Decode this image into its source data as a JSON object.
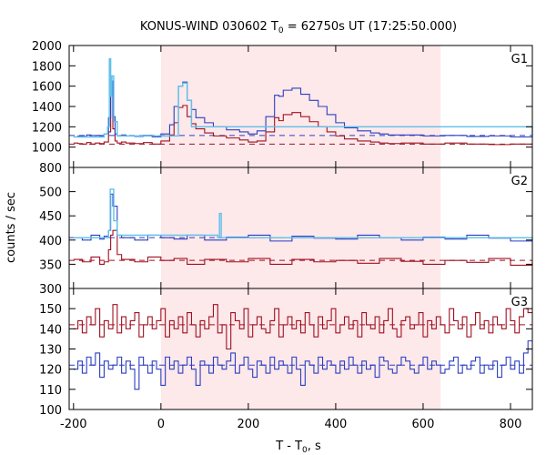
{
  "chart_data": {
    "type": "line",
    "title": {
      "prefix": "KONUS-WIND 030602 T",
      "sub": "0",
      "suffix": " = 62750s UT (17:25:50.000)"
    },
    "xlabel": {
      "prefix": "T - T",
      "sub": "0",
      "suffix": ", s"
    },
    "ylabel": "counts / sec",
    "xlim": [
      -210,
      850
    ],
    "x_ticks": [
      -200,
      0,
      200,
      400,
      600,
      800
    ],
    "shaded_interval": [
      0,
      640
    ],
    "shade_color": "#fde8ea",
    "colors": {
      "red": "#a01020",
      "blue": "#2a3fc0",
      "cyan": "#5fc0ea"
    },
    "panels": [
      {
        "name": "G1",
        "ylim": [
          800,
          2000
        ],
        "y_ticks": [
          800,
          1000,
          1200,
          1400,
          1600,
          1800,
          2000
        ],
        "red_background": 1030,
        "blue_background": 1115,
        "series": [
          {
            "name": "",
            "color": "red",
            "x": [
              -200,
              -190,
              -180,
              -170,
              -160,
              -150,
              -140,
              -130,
              -120,
              -115,
              -110,
              -105,
              -100,
              -90,
              -80,
              -60,
              -40,
              -20,
              0,
              20,
              30,
              40,
              50,
              60,
              70,
              80,
              100,
              120,
              150,
              180,
              200,
              220,
              240,
              260,
              270,
              280,
              300,
              320,
              340,
              360,
              380,
              400,
              420,
              450,
              480,
              500,
              520,
              550,
              600,
              650,
              700,
              750,
              800,
              850
            ],
            "y": [
              1040,
              1035,
              1030,
              1045,
              1030,
              1040,
              1035,
              1050,
              1150,
              1600,
              1180,
              1060,
              1040,
              1050,
              1040,
              1035,
              1045,
              1030,
              1060,
              1120,
              1240,
              1390,
              1410,
              1300,
              1230,
              1180,
              1140,
              1110,
              1090,
              1070,
              1050,
              1060,
              1150,
              1290,
              1260,
              1320,
              1340,
              1300,
              1250,
              1200,
              1150,
              1110,
              1080,
              1060,
              1050,
              1040,
              1035,
              1040,
              1030,
              1040,
              1030,
              1025,
              1030,
              1030
            ]
          },
          {
            "name": "",
            "color": "blue",
            "x": [
              -200,
              -190,
              -180,
              -170,
              -160,
              -150,
              -140,
              -130,
              -120,
              -115,
              -110,
              -105,
              -100,
              -90,
              -80,
              -60,
              -40,
              -20,
              0,
              20,
              30,
              40,
              50,
              60,
              70,
              80,
              100,
              120,
              150,
              180,
              200,
              220,
              240,
              260,
              270,
              280,
              300,
              320,
              340,
              360,
              380,
              400,
              420,
              450,
              480,
              500,
              520,
              550,
              600,
              650,
              700,
              750,
              800,
              850
            ],
            "y": [
              1100,
              1110,
              1105,
              1120,
              1100,
              1115,
              1110,
              1130,
              1290,
              1650,
              1300,
              1130,
              1110,
              1120,
              1110,
              1105,
              1115,
              1100,
              1130,
              1220,
              1400,
              1600,
              1640,
              1460,
              1370,
              1290,
              1240,
              1200,
              1170,
              1150,
              1130,
              1160,
              1300,
              1510,
              1500,
              1560,
              1580,
              1520,
              1460,
              1400,
              1320,
              1240,
              1190,
              1160,
              1140,
              1130,
              1120,
              1120,
              1110,
              1115,
              1105,
              1110,
              1100,
              1100
            ]
          },
          {
            "name": "",
            "color": "cyan",
            "x": [
              -200,
              -130,
              -122,
              -118,
              -115,
              -112,
              -108,
              -100,
              40,
              50,
              60,
              70,
              850
            ],
            "y": [
              1100,
              1130,
              1200,
              1870,
              1500,
              1700,
              1250,
              1110,
              1600,
              1630,
              1460,
              1200,
              1100
            ]
          }
        ]
      },
      {
        "name": "G2",
        "ylim": [
          300,
          550
        ],
        "y_ticks": [
          300,
          350,
          400,
          450,
          500
        ],
        "red_background": 358,
        "blue_background": 405,
        "series": [
          {
            "name": "",
            "color": "red",
            "x": [
              -200,
              -180,
              -160,
              -140,
              -130,
              -120,
              -115,
              -110,
              -100,
              -90,
              -60,
              -30,
              0,
              30,
              60,
              100,
              150,
              200,
              250,
              300,
              350,
              400,
              450,
              500,
              550,
              600,
              650,
              700,
              750,
              800,
              850
            ],
            "y": [
              360,
              355,
              365,
              350,
              355,
              380,
              410,
              420,
              370,
              360,
              355,
              365,
              358,
              362,
              350,
              360,
              355,
              362,
              350,
              360,
              355,
              358,
              352,
              362,
              356,
              350,
              358,
              354,
              362,
              348,
              356
            ]
          },
          {
            "name": "",
            "color": "blue",
            "x": [
              -200,
              -180,
              -160,
              -140,
              -130,
              -120,
              -115,
              -110,
              -100,
              -90,
              -60,
              -30,
              0,
              30,
              60,
              100,
              150,
              200,
              250,
              300,
              350,
              400,
              450,
              500,
              550,
              600,
              650,
              700,
              750,
              800,
              850
            ],
            "y": [
              405,
              400,
              410,
              402,
              408,
              420,
              495,
              470,
              410,
              405,
              400,
              410,
              405,
              402,
              410,
              400,
              406,
              410,
              398,
              408,
              404,
              402,
              410,
              405,
              400,
              406,
              402,
              410,
              404,
              398,
              406
            ]
          },
          {
            "name": "",
            "color": "cyan",
            "x": [
              -200,
              -120,
              -116,
              -112,
              -108,
              -100,
              130,
              134,
              138,
              850
            ],
            "y": [
              405,
              420,
              505,
              505,
              440,
              410,
              405,
              455,
              405,
              405
            ]
          }
        ]
      },
      {
        "name": "G3",
        "ylim": [
          100,
          160
        ],
        "y_ticks": [
          100,
          110,
          120,
          130,
          140,
          150
        ],
        "red_background": 142,
        "blue_background": 122,
        "series": [
          {
            "name": "",
            "color": "red",
            "x": [
              -200,
              -190,
              -180,
              -170,
              -160,
              -150,
              -140,
              -130,
              -120,
              -110,
              -100,
              -90,
              -80,
              -70,
              -60,
              -50,
              -40,
              -30,
              -20,
              -10,
              0,
              10,
              20,
              30,
              40,
              50,
              60,
              70,
              80,
              90,
              100,
              110,
              120,
              130,
              140,
              150,
              160,
              170,
              180,
              190,
              200,
              210,
              220,
              230,
              240,
              250,
              260,
              270,
              280,
              290,
              300,
              310,
              320,
              330,
              340,
              350,
              360,
              370,
              380,
              390,
              400,
              410,
              420,
              430,
              440,
              450,
              460,
              470,
              480,
              490,
              500,
              510,
              520,
              530,
              540,
              550,
              560,
              570,
              580,
              590,
              600,
              610,
              620,
              630,
              640,
              650,
              660,
              670,
              680,
              690,
              700,
              710,
              720,
              730,
              740,
              750,
              760,
              770,
              780,
              790,
              800,
              810,
              820,
              830,
              840
            ],
            "y": [
              140,
              144,
              138,
              146,
              142,
              150,
              136,
              144,
              140,
              152,
              138,
              146,
              140,
              144,
              148,
              136,
              142,
              146,
              140,
              144,
              150,
              136,
              144,
              140,
              146,
              138,
              148,
              142,
              136,
              144,
              140,
              146,
              152,
              138,
              142,
              130,
              148,
              144,
              140,
              150,
              136,
              142,
              146,
              140,
              138,
              144,
              150,
              136,
              142,
              146,
              140,
              144,
              138,
              148,
              142,
              136,
              146,
              140,
              144,
              150,
              138,
              142,
              146,
              140,
              144,
              136,
              148,
              142,
              140,
              146,
              138,
              144,
              150,
              140,
              136,
              144,
              146,
              140,
              142,
              148,
              136,
              144,
              140,
              146,
              142,
              138,
              150,
              144,
              140,
              146,
              136,
              142,
              148,
              140,
              144,
              138,
              146,
              142,
              140,
              150,
              144,
              138,
              146,
              150,
              148
            ]
          },
          {
            "name": "",
            "color": "blue",
            "x": [
              -200,
              -190,
              -180,
              -170,
              -160,
              -150,
              -140,
              -130,
              -120,
              -110,
              -100,
              -90,
              -80,
              -70,
              -60,
              -50,
              -40,
              -30,
              -20,
              -10,
              0,
              10,
              20,
              30,
              40,
              50,
              60,
              70,
              80,
              90,
              100,
              110,
              120,
              130,
              140,
              150,
              160,
              170,
              180,
              190,
              200,
              210,
              220,
              230,
              240,
              250,
              260,
              270,
              280,
              290,
              300,
              310,
              320,
              330,
              340,
              350,
              360,
              370,
              380,
              390,
              400,
              410,
              420,
              430,
              440,
              450,
              460,
              470,
              480,
              490,
              500,
              510,
              520,
              530,
              540,
              550,
              560,
              570,
              580,
              590,
              600,
              610,
              620,
              630,
              640,
              650,
              660,
              670,
              680,
              690,
              700,
              710,
              720,
              730,
              740,
              750,
              760,
              770,
              780,
              790,
              800,
              810,
              820,
              830,
              840
            ],
            "y": [
              120,
              124,
              118,
              126,
              122,
              128,
              116,
              124,
              120,
              122,
              126,
              118,
              124,
              120,
              110,
              126,
              122,
              118,
              124,
              120,
              112,
              126,
              120,
              124,
              118,
              122,
              126,
              120,
              112,
              124,
              122,
              118,
              126,
              122,
              120,
              124,
              128,
              118,
              122,
              126,
              120,
              116,
              124,
              122,
              118,
              126,
              120,
              124,
              122,
              118,
              126,
              120,
              112,
              124,
              122,
              118,
              126,
              120,
              124,
              122,
              118,
              124,
              120,
              126,
              122,
              118,
              124,
              120,
              122,
              116,
              126,
              124,
              120,
              118,
              122,
              126,
              124,
              120,
              118,
              122,
              126,
              120,
              124,
              122,
              118,
              120,
              124,
              126,
              118,
              122,
              120,
              124,
              126,
              118,
              122,
              120,
              124,
              116,
              122,
              126,
              120,
              124,
              118,
              128,
              134
            ]
          }
        ]
      }
    ]
  }
}
